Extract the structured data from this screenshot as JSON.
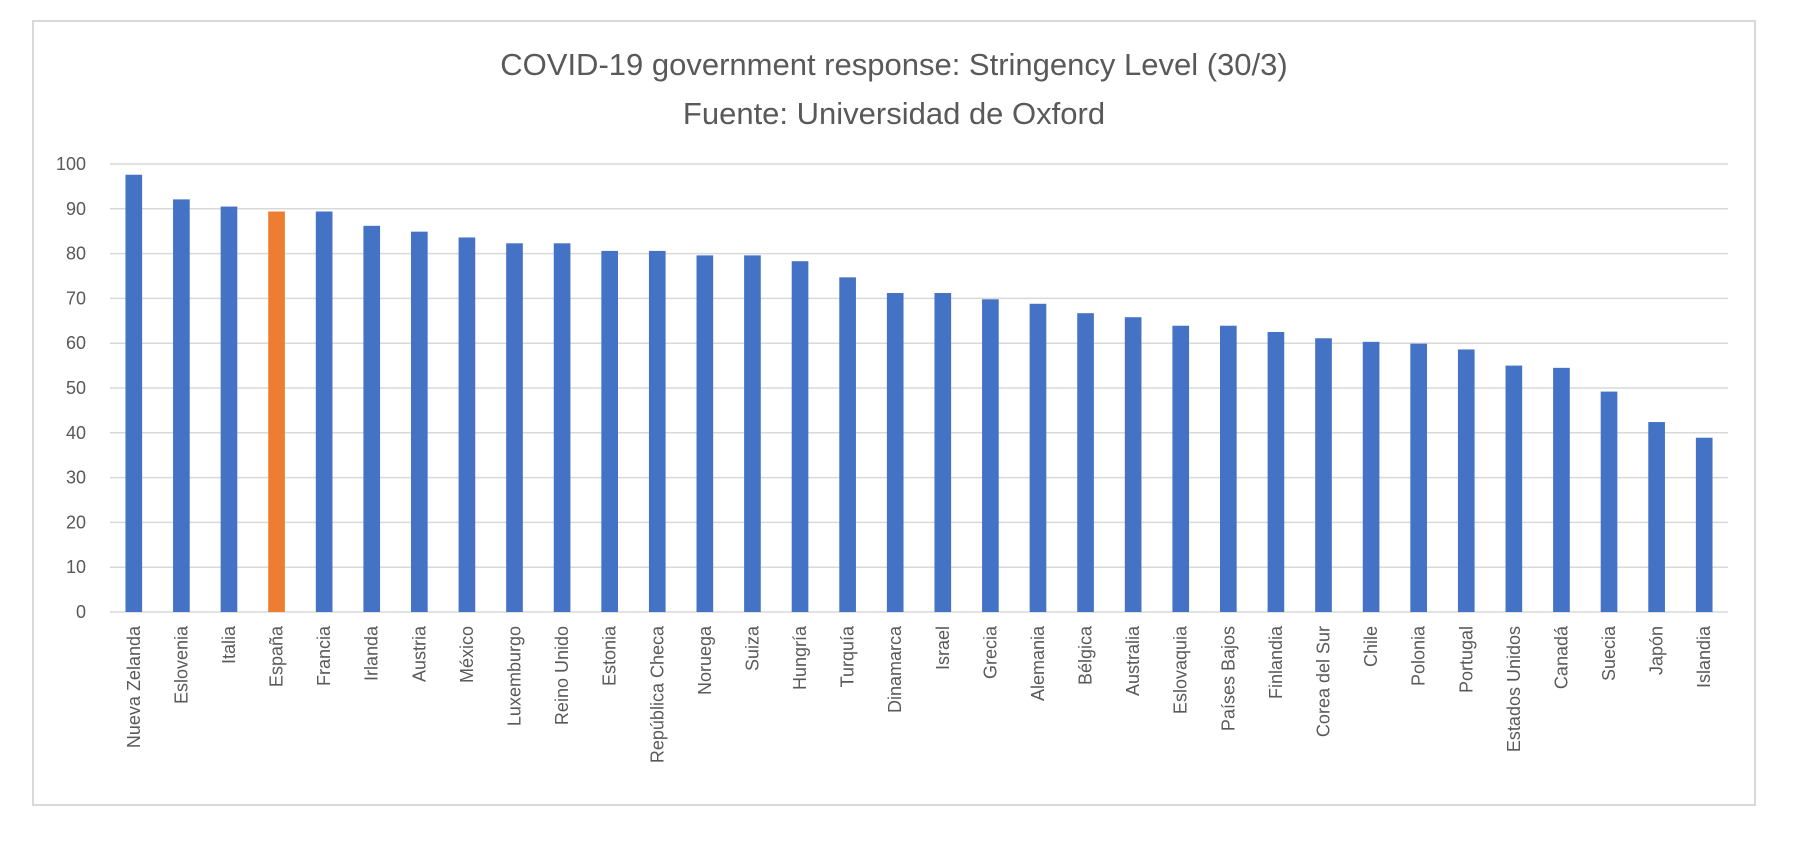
{
  "chart_data": {
    "type": "bar",
    "title": "COVID-19 government response: Stringency Level (30/3)",
    "subtitle": "Fuente: Universidad de Oxford",
    "xlabel": "",
    "ylabel": "",
    "ylim": [
      0,
      100
    ],
    "yticks": [
      "0",
      "10",
      "20",
      "30",
      "40",
      "50",
      "60",
      "70",
      "80",
      "90",
      "100"
    ],
    "grid": true,
    "legend": "none",
    "categories": [
      "Nueva Zelanda",
      "Eslovenia",
      "Italia",
      "España",
      "Francia",
      "Irlanda",
      "Austria",
      "México",
      "Luxemburgo",
      "Reino Unido",
      "Estonia",
      "República Checa",
      "Noruega",
      "Suiza",
      "Hungría",
      "Turquía",
      "Dinamarca",
      "Israel",
      "Grecia",
      "Alemania",
      "Bélgica",
      "Australia",
      "Eslovaquia",
      "Países Bajos",
      "Finlandia",
      "Corea del Sur",
      "Chile",
      "Polonia",
      "Portugal",
      "Estados Unidos",
      "Canadá",
      "Suecia",
      "Japón",
      "Islandia"
    ],
    "values": [
      97.6,
      92.1,
      90.5,
      89.4,
      89.4,
      86.2,
      84.9,
      83.6,
      82.3,
      82.3,
      80.6,
      80.6,
      79.6,
      79.6,
      78.3,
      74.7,
      71.2,
      71.2,
      69.8,
      68.8,
      66.7,
      65.8,
      63.9,
      63.9,
      62.5,
      61.1,
      60.3,
      59.9,
      58.6,
      55.0,
      54.5,
      49.2,
      42.4,
      38.9
    ],
    "highlight": "España",
    "colors": {
      "bar": "#4472C4",
      "highlight": "#ED7D31",
      "grid": "#D9D9D9",
      "text": "#595959",
      "border": "#D9D9D9"
    }
  }
}
